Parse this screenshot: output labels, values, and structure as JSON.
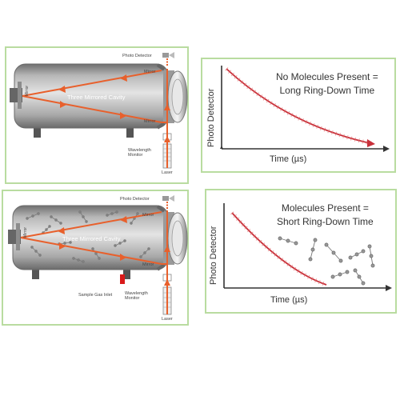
{
  "top_diagram": {
    "photo_detector": "Photo Detector",
    "mirror_top": "Mirror",
    "mirror_bottom": "Mirror",
    "mirror_left": "Mirror",
    "cavity": "Three Mirrored Cavity",
    "wavelength_monitor": "Wavelength\nMonitor",
    "laser": "Laser"
  },
  "bottom_diagram": {
    "photo_detector": "Photo Detector",
    "mirror_top": "Mirror",
    "mirror_bottom": "Mirror",
    "mirror_left": "Mirror",
    "cavity": "Three Mirrored Cavity",
    "sample_gas_inlet": "Sample Gas Inlet",
    "wavelength_monitor": "Wavelength\nMonitor",
    "laser": "Laser"
  },
  "top_graph": {
    "title_line1": "No Molecules Present =",
    "title_line2": "Long Ring-Down Time",
    "ylabel": "Photo Detector",
    "xlabel": "Time (µs)"
  },
  "bottom_graph": {
    "title_line1": "Molecules Present =",
    "title_line2": "Short Ring-Down Time",
    "ylabel": "Photo Detector",
    "xlabel": "Time (µs)"
  },
  "colors": {
    "panel_border": "#b9dca0",
    "beam": "#e8602c",
    "decay_curve": "#c8303a",
    "sample_inlet": "#d91a1a"
  }
}
